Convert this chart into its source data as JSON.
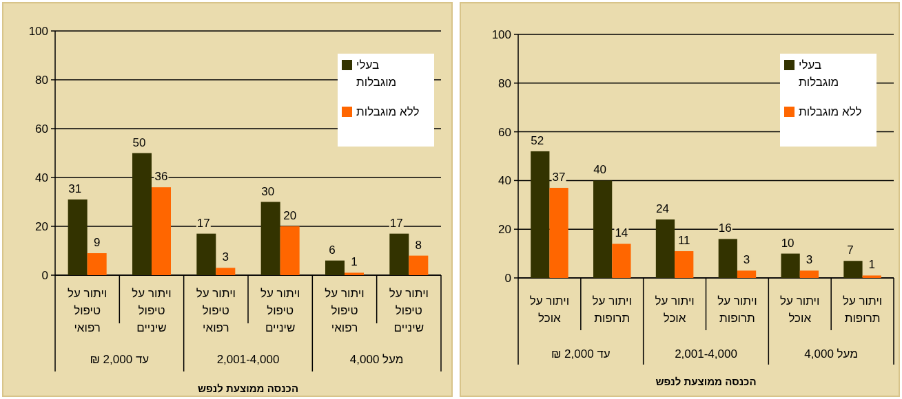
{
  "chart_data": [
    {
      "type": "bar",
      "categories": [
        "ויתור על\nטיפול\nרפואי",
        "ויתור על\nטיפול\nשיניים",
        "ויתור על\nטיפול\nרפואי",
        "ויתור על\nטיפול\nשיניים",
        "ויתור על\nטיפול\nרפואי",
        "ויתור על\nטיפול\nשיניים"
      ],
      "series": [
        {
          "name": "בעלי\nמוגבלות",
          "color": "#333300",
          "values": [
            31,
            50,
            17,
            30,
            6,
            17
          ]
        },
        {
          "name": "ללא מוגבלות",
          "color": "#ff6600",
          "values": [
            9,
            36,
            3,
            20,
            1,
            8
          ]
        }
      ],
      "annotations": [
        "עד 2,000 ₪",
        "2,001-4,000",
        "מעל 4,000"
      ],
      "xlabel": "הכנסה  ממוצעת לנפש",
      "ylim": [
        0,
        100
      ],
      "yticks": [
        0,
        20,
        40,
        60,
        80,
        100
      ],
      "grid": "y",
      "legend": "top right",
      "data_labels": true
    },
    {
      "type": "bar",
      "categories": [
        "ויתור על\nאוכל",
        "ויתור על\nתרופות",
        "ויתור על\nאוכל",
        "ויתור על\nתרופות",
        "ויתור על\nאוכל",
        "ויתור על\nתרופות"
      ],
      "series": [
        {
          "name": "בעלי\nמוגבלות",
          "color": "#333300",
          "values": [
            52,
            40,
            24,
            16,
            10,
            7
          ]
        },
        {
          "name": "ללא מוגבלות",
          "color": "#ff6600",
          "values": [
            37,
            14,
            11,
            3,
            3,
            1
          ]
        }
      ],
      "annotations": [
        "עד 2,000 ₪",
        "2,001-4,000",
        "מעל 4,000"
      ],
      "xlabel": "הכנסה ממוצעת לנפש",
      "ylim": [
        0,
        100
      ],
      "yticks": [
        0,
        20,
        40,
        60,
        80,
        100
      ],
      "grid": "y",
      "legend": "top right",
      "data_labels": true
    }
  ]
}
